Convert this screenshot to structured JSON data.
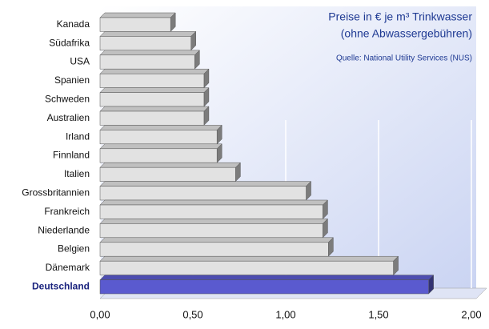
{
  "chart_data": {
    "type": "bar",
    "orientation": "horizontal",
    "title": "Preise in € je m³ Trinkwasser",
    "subtitle": "(ohne Abwassergebühren)",
    "source": "Quelle: National Utility Services (NUS)",
    "categories": [
      "Kanada",
      "Südafrika",
      "USA",
      "Spanien",
      "Schweden",
      "Australien",
      "Irland",
      "Finnland",
      "Italien",
      "Grossbritannien",
      "Frankreich",
      "Niederlande",
      "Belgien",
      "Dänemark",
      "Deutschland"
    ],
    "values": [
      0.38,
      0.49,
      0.51,
      0.56,
      0.56,
      0.56,
      0.63,
      0.63,
      0.73,
      1.11,
      1.2,
      1.2,
      1.23,
      1.58,
      1.77
    ],
    "color": "#e2e2e2",
    "highlight": {
      "index": 14,
      "color": "#5a5acf",
      "label_color": "#1a237e"
    },
    "xlim": [
      0,
      2
    ],
    "xticks": [
      {
        "value": 0,
        "label": "0,00"
      },
      {
        "value": 0.5,
        "label": "0,50"
      },
      {
        "value": 1,
        "label": "1,00"
      },
      {
        "value": 1.5,
        "label": "1,50"
      },
      {
        "value": 2,
        "label": "2,00"
      }
    ],
    "grid": true
  }
}
